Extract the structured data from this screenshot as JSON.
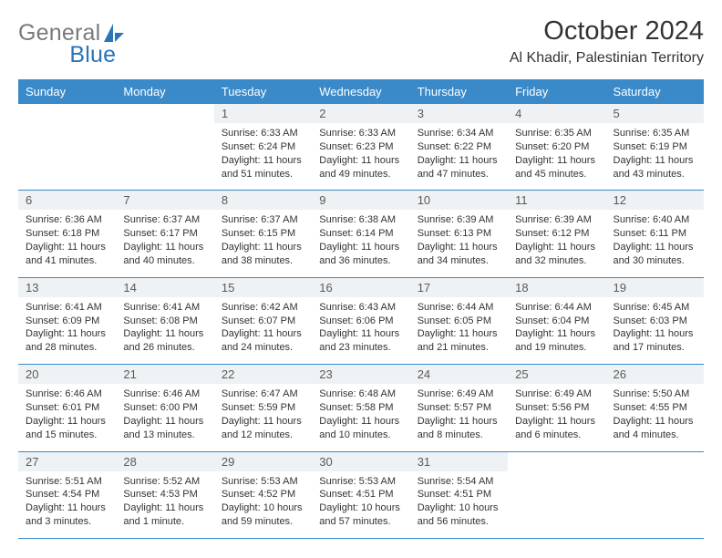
{
  "brand": {
    "name1": "General",
    "name2": "Blue"
  },
  "title": "October 2024",
  "location": "Al Khadir, Palestinian Territory",
  "colors": {
    "header_bg": "#3a8ac9",
    "header_fg": "#ffffff",
    "daynum_bg": "#eef2f4",
    "rule": "#3a8ac9",
    "logo_gray": "#7a7a7a",
    "logo_blue": "#2a74b8"
  },
  "typography": {
    "title_fontsize": 29,
    "location_fontsize": 16,
    "weekday_fontsize": 13,
    "daynum_fontsize": 13,
    "body_fontsize": 11
  },
  "weekdays": [
    "Sunday",
    "Monday",
    "Tuesday",
    "Wednesday",
    "Thursday",
    "Friday",
    "Saturday"
  ],
  "weeks": [
    [
      null,
      null,
      {
        "n": "1",
        "sunrise": "Sunrise: 6:33 AM",
        "sunset": "Sunset: 6:24 PM",
        "daylight": "Daylight: 11 hours and 51 minutes."
      },
      {
        "n": "2",
        "sunrise": "Sunrise: 6:33 AM",
        "sunset": "Sunset: 6:23 PM",
        "daylight": "Daylight: 11 hours and 49 minutes."
      },
      {
        "n": "3",
        "sunrise": "Sunrise: 6:34 AM",
        "sunset": "Sunset: 6:22 PM",
        "daylight": "Daylight: 11 hours and 47 minutes."
      },
      {
        "n": "4",
        "sunrise": "Sunrise: 6:35 AM",
        "sunset": "Sunset: 6:20 PM",
        "daylight": "Daylight: 11 hours and 45 minutes."
      },
      {
        "n": "5",
        "sunrise": "Sunrise: 6:35 AM",
        "sunset": "Sunset: 6:19 PM",
        "daylight": "Daylight: 11 hours and 43 minutes."
      }
    ],
    [
      {
        "n": "6",
        "sunrise": "Sunrise: 6:36 AM",
        "sunset": "Sunset: 6:18 PM",
        "daylight": "Daylight: 11 hours and 41 minutes."
      },
      {
        "n": "7",
        "sunrise": "Sunrise: 6:37 AM",
        "sunset": "Sunset: 6:17 PM",
        "daylight": "Daylight: 11 hours and 40 minutes."
      },
      {
        "n": "8",
        "sunrise": "Sunrise: 6:37 AM",
        "sunset": "Sunset: 6:15 PM",
        "daylight": "Daylight: 11 hours and 38 minutes."
      },
      {
        "n": "9",
        "sunrise": "Sunrise: 6:38 AM",
        "sunset": "Sunset: 6:14 PM",
        "daylight": "Daylight: 11 hours and 36 minutes."
      },
      {
        "n": "10",
        "sunrise": "Sunrise: 6:39 AM",
        "sunset": "Sunset: 6:13 PM",
        "daylight": "Daylight: 11 hours and 34 minutes."
      },
      {
        "n": "11",
        "sunrise": "Sunrise: 6:39 AM",
        "sunset": "Sunset: 6:12 PM",
        "daylight": "Daylight: 11 hours and 32 minutes."
      },
      {
        "n": "12",
        "sunrise": "Sunrise: 6:40 AM",
        "sunset": "Sunset: 6:11 PM",
        "daylight": "Daylight: 11 hours and 30 minutes."
      }
    ],
    [
      {
        "n": "13",
        "sunrise": "Sunrise: 6:41 AM",
        "sunset": "Sunset: 6:09 PM",
        "daylight": "Daylight: 11 hours and 28 minutes."
      },
      {
        "n": "14",
        "sunrise": "Sunrise: 6:41 AM",
        "sunset": "Sunset: 6:08 PM",
        "daylight": "Daylight: 11 hours and 26 minutes."
      },
      {
        "n": "15",
        "sunrise": "Sunrise: 6:42 AM",
        "sunset": "Sunset: 6:07 PM",
        "daylight": "Daylight: 11 hours and 24 minutes."
      },
      {
        "n": "16",
        "sunrise": "Sunrise: 6:43 AM",
        "sunset": "Sunset: 6:06 PM",
        "daylight": "Daylight: 11 hours and 23 minutes."
      },
      {
        "n": "17",
        "sunrise": "Sunrise: 6:44 AM",
        "sunset": "Sunset: 6:05 PM",
        "daylight": "Daylight: 11 hours and 21 minutes."
      },
      {
        "n": "18",
        "sunrise": "Sunrise: 6:44 AM",
        "sunset": "Sunset: 6:04 PM",
        "daylight": "Daylight: 11 hours and 19 minutes."
      },
      {
        "n": "19",
        "sunrise": "Sunrise: 6:45 AM",
        "sunset": "Sunset: 6:03 PM",
        "daylight": "Daylight: 11 hours and 17 minutes."
      }
    ],
    [
      {
        "n": "20",
        "sunrise": "Sunrise: 6:46 AM",
        "sunset": "Sunset: 6:01 PM",
        "daylight": "Daylight: 11 hours and 15 minutes."
      },
      {
        "n": "21",
        "sunrise": "Sunrise: 6:46 AM",
        "sunset": "Sunset: 6:00 PM",
        "daylight": "Daylight: 11 hours and 13 minutes."
      },
      {
        "n": "22",
        "sunrise": "Sunrise: 6:47 AM",
        "sunset": "Sunset: 5:59 PM",
        "daylight": "Daylight: 11 hours and 12 minutes."
      },
      {
        "n": "23",
        "sunrise": "Sunrise: 6:48 AM",
        "sunset": "Sunset: 5:58 PM",
        "daylight": "Daylight: 11 hours and 10 minutes."
      },
      {
        "n": "24",
        "sunrise": "Sunrise: 6:49 AM",
        "sunset": "Sunset: 5:57 PM",
        "daylight": "Daylight: 11 hours and 8 minutes."
      },
      {
        "n": "25",
        "sunrise": "Sunrise: 6:49 AM",
        "sunset": "Sunset: 5:56 PM",
        "daylight": "Daylight: 11 hours and 6 minutes."
      },
      {
        "n": "26",
        "sunrise": "Sunrise: 5:50 AM",
        "sunset": "Sunset: 4:55 PM",
        "daylight": "Daylight: 11 hours and 4 minutes."
      }
    ],
    [
      {
        "n": "27",
        "sunrise": "Sunrise: 5:51 AM",
        "sunset": "Sunset: 4:54 PM",
        "daylight": "Daylight: 11 hours and 3 minutes."
      },
      {
        "n": "28",
        "sunrise": "Sunrise: 5:52 AM",
        "sunset": "Sunset: 4:53 PM",
        "daylight": "Daylight: 11 hours and 1 minute."
      },
      {
        "n": "29",
        "sunrise": "Sunrise: 5:53 AM",
        "sunset": "Sunset: 4:52 PM",
        "daylight": "Daylight: 10 hours and 59 minutes."
      },
      {
        "n": "30",
        "sunrise": "Sunrise: 5:53 AM",
        "sunset": "Sunset: 4:51 PM",
        "daylight": "Daylight: 10 hours and 57 minutes."
      },
      {
        "n": "31",
        "sunrise": "Sunrise: 5:54 AM",
        "sunset": "Sunset: 4:51 PM",
        "daylight": "Daylight: 10 hours and 56 minutes."
      },
      null,
      null
    ]
  ]
}
